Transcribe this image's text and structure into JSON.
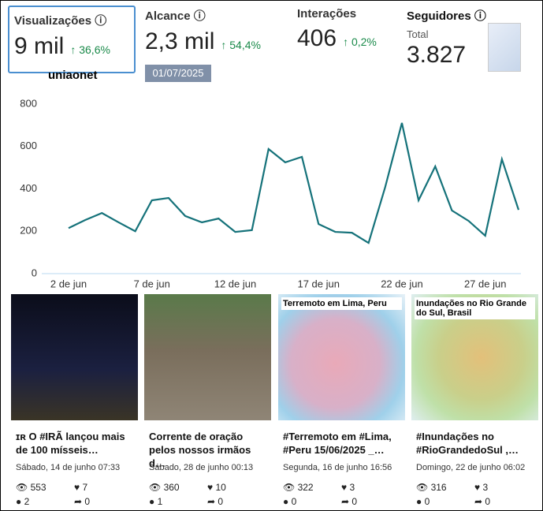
{
  "metrics": [
    {
      "label": "Visualizações",
      "value": "9 mil",
      "change": "36,6%"
    },
    {
      "label": "Alcance",
      "value": "2,3 mil",
      "change": "54,4%"
    },
    {
      "label": "Interações",
      "value": "406",
      "change": "0,2%"
    },
    {
      "label": "Seguidores",
      "sublabel": "Total",
      "value": "3.827"
    }
  ],
  "account": "uniaonet",
  "date": "01/07/2025",
  "chart_data": {
    "type": "line",
    "categories": [
      "2 de jun",
      null,
      null,
      null,
      null,
      "7 de jun",
      null,
      null,
      null,
      null,
      "12 de jun",
      null,
      null,
      null,
      null,
      "17 de jun",
      null,
      null,
      null,
      null,
      "22 de jun",
      null,
      null,
      null,
      null,
      "27 de jun",
      null,
      null
    ],
    "series": [
      {
        "color": "#15727a",
        "values": [
          215,
          253,
          286,
          242,
          200,
          346,
          357,
          272,
          242,
          260,
          197,
          205,
          588,
          525,
          551,
          234,
          197,
          193,
          145,
          409,
          711,
          346,
          506,
          298,
          249,
          179,
          540,
          301
        ]
      }
    ],
    "ylim": [
      0,
      800
    ],
    "yticks": [
      0,
      200,
      400,
      600,
      800
    ],
    "grid": false
  },
  "posts": [
    {
      "image_text": "",
      "title": "ɪʀ O #IRÃ lançou mais de 100 mísseis…",
      "date": "Sábado, 14 de junho 07:33",
      "views": 553,
      "likes": 7,
      "comments": 2,
      "shares": 0
    },
    {
      "image_text": "",
      "title": "Corrente de oração pelos nossos irmãos d…",
      "date": "Sábado, 28 de junho 00:13",
      "views": 360,
      "likes": 10,
      "comments": 1,
      "shares": 0
    },
    {
      "image_text": "Terremoto em Lima, Peru",
      "title": "#Terremoto em #Lima, #Peru 15/06/2025 _…",
      "date": "Segunda, 16 de junho 16:56",
      "views": 322,
      "likes": 3,
      "comments": 0,
      "shares": 0
    },
    {
      "image_text": "Inundações no Rio Grande do Sul, Brasil",
      "title": "#Inundações no #RioGrandedoSul ,…",
      "date": "Domingo, 22 de junho 06:02",
      "views": 316,
      "likes": 3,
      "comments": 0,
      "shares": 0
    }
  ]
}
